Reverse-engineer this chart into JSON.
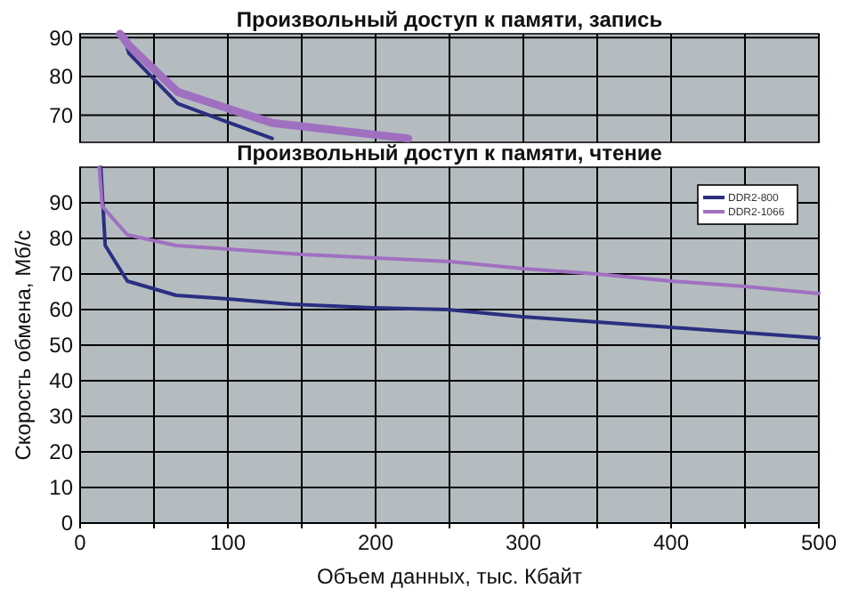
{
  "chart_data": [
    {
      "type": "line",
      "title": "Произвольный доступ к памяти, запись",
      "xlim": [
        0,
        500
      ],
      "ylim": [
        63,
        91
      ],
      "xticks": [
        {
          "value": 0,
          "label": null
        },
        {
          "value": 50,
          "label": null
        },
        {
          "value": 100,
          "label": null
        },
        {
          "value": 150,
          "label": null
        },
        {
          "value": 200,
          "label": null
        },
        {
          "value": 250,
          "label": null
        },
        {
          "value": 300,
          "label": null
        },
        {
          "value": 350,
          "label": null
        },
        {
          "value": 400,
          "label": null
        },
        {
          "value": 450,
          "label": null
        },
        {
          "value": 500,
          "label": null
        }
      ],
      "yticks": [
        70,
        80,
        90
      ],
      "tick_labels": "y",
      "grid": true,
      "legend": false,
      "series": [
        {
          "color": "#2a2f80",
          "x": [
            29,
            33,
            66,
            130
          ],
          "values": [
            91,
            86,
            73,
            64
          ]
        },
        {
          "color": "#a070c0",
          "x": [
            27,
            33,
            66,
            130,
            222
          ],
          "values": [
            91,
            88,
            76,
            68,
            64
          ]
        }
      ]
    },
    {
      "type": "line",
      "title": "Произвольный доступ к памяти, чтение",
      "xlabel": "Объем данных, тыс. Кбайт",
      "ylabel": "Скорость обмена, Мб/с",
      "xlim": [
        0,
        500
      ],
      "ylim": [
        0,
        100
      ],
      "xticks": [
        0,
        {
          "value": 50,
          "label": null
        },
        100,
        {
          "value": 150,
          "label": null
        },
        200,
        {
          "value": 250,
          "label": null
        },
        300,
        {
          "value": 350,
          "label": null
        },
        400,
        {
          "value": 450,
          "label": null
        },
        500
      ],
      "yticks": [
        0,
        10,
        20,
        30,
        40,
        50,
        60,
        70,
        80,
        90
      ],
      "grid": true,
      "legend": "top right",
      "series": [
        {
          "name": "DDR2-800",
          "color": "#2a2f80",
          "x": [
            14,
            17,
            32,
            65,
            100,
            143,
            198,
            249,
            299,
            350,
            400,
            450,
            500
          ],
          "values": [
            100,
            78,
            68,
            64,
            63,
            61.5,
            60.5,
            60,
            58,
            56.5,
            55,
            53.5,
            52
          ]
        },
        {
          "name": "DDR2-1066",
          "color": "#a070c0",
          "x": [
            13,
            15,
            32,
            65,
            100,
            150,
            200,
            250,
            300,
            350,
            400,
            450,
            500
          ],
          "values": [
            100,
            89,
            81,
            78,
            77,
            75.5,
            74.5,
            73.5,
            71.5,
            70,
            68,
            66.5,
            64.5
          ]
        }
      ]
    }
  ]
}
